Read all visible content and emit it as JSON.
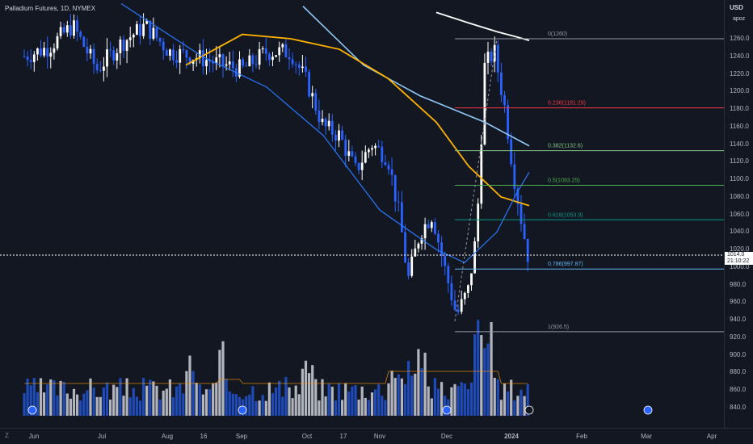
{
  "title": "Palladium Futures, 1D, NYMEX",
  "currency": "USD",
  "user": "apoz",
  "current_price": "1014.0",
  "countdown": "21:10:22",
  "zoom_label": "Z",
  "price_ticks": [
    "1260.0",
    "1240.0",
    "1220.0",
    "1200.0",
    "1180.0",
    "1160.0",
    "1140.0",
    "1120.0",
    "1100.0",
    "1080.0",
    "1060.0",
    "1040.0",
    "1020.0",
    "1000.0",
    "980.0",
    "960.0",
    "940.0",
    "920.0",
    "900.0",
    "880.0",
    "860.0",
    "840.0"
  ],
  "time_ticks": [
    "Jun",
    "Jul",
    "Aug",
    "16",
    "Sep",
    "Oct",
    "17",
    "Nov",
    "Dec",
    "2024",
    "Feb",
    "Mar",
    "Apr"
  ],
  "fib_levels": [
    {
      "ratio": "0",
      "value": "1260",
      "label": "0(1260)",
      "color": "#9598a1"
    },
    {
      "ratio": "0.236",
      "value": "1181.29",
      "label": "0.236(1181.29)",
      "color": "#f23645"
    },
    {
      "ratio": "0.382",
      "value": "1132.6",
      "label": "0.382(1132.6)",
      "color": "#81c784"
    },
    {
      "ratio": "0.5",
      "value": "1093.25",
      "label": "0.5(1093.25)",
      "color": "#4caf50"
    },
    {
      "ratio": "0.618",
      "value": "1053.9",
      "label": "0.618(1053.9)",
      "color": "#089981"
    },
    {
      "ratio": "0.786",
      "value": "997.87",
      "label": "0.786(997.87)",
      "color": "#64b5f6"
    },
    {
      "ratio": "1",
      "value": "926.5",
      "label": "1(926.5)",
      "color": "#9598a1"
    }
  ],
  "colors": {
    "background": "#131722",
    "bull_candle": "#ffffff",
    "bear_candle": "#2962ff",
    "ma_white": "#ffffff",
    "ma_light_blue": "#90caf9",
    "ma_orange": "#ffb300",
    "ma_blue": "#2979ff",
    "volume_up": "#b2b5be",
    "volume_down": "#1e4bb8",
    "volume_ma": "#ff9800"
  },
  "chart_data": {
    "type": "line",
    "ylim": [
      830,
      1290
    ],
    "y_axis_side": "right",
    "grid": false,
    "series": [
      {
        "name": "",
        "values": [
          1290,
          1278,
          1268,
          1262,
          1258
        ]
      },
      {
        "name": "",
        "values": [
          1297,
          1230,
          1195,
          1165,
          1138
        ]
      },
      {
        "name": "",
        "values": [
          1230,
          1265,
          1260,
          1248,
          1215,
          1165,
          1115,
          1080,
          1070
        ]
      },
      {
        "name": "",
        "values": [
          1300,
          1240,
          1205,
          1150,
          1065,
          1020,
          1005,
          1040,
          1085,
          1108
        ]
      }
    ],
    "volume": [
      {
        "name": "",
        "values": []
      }
    ]
  }
}
